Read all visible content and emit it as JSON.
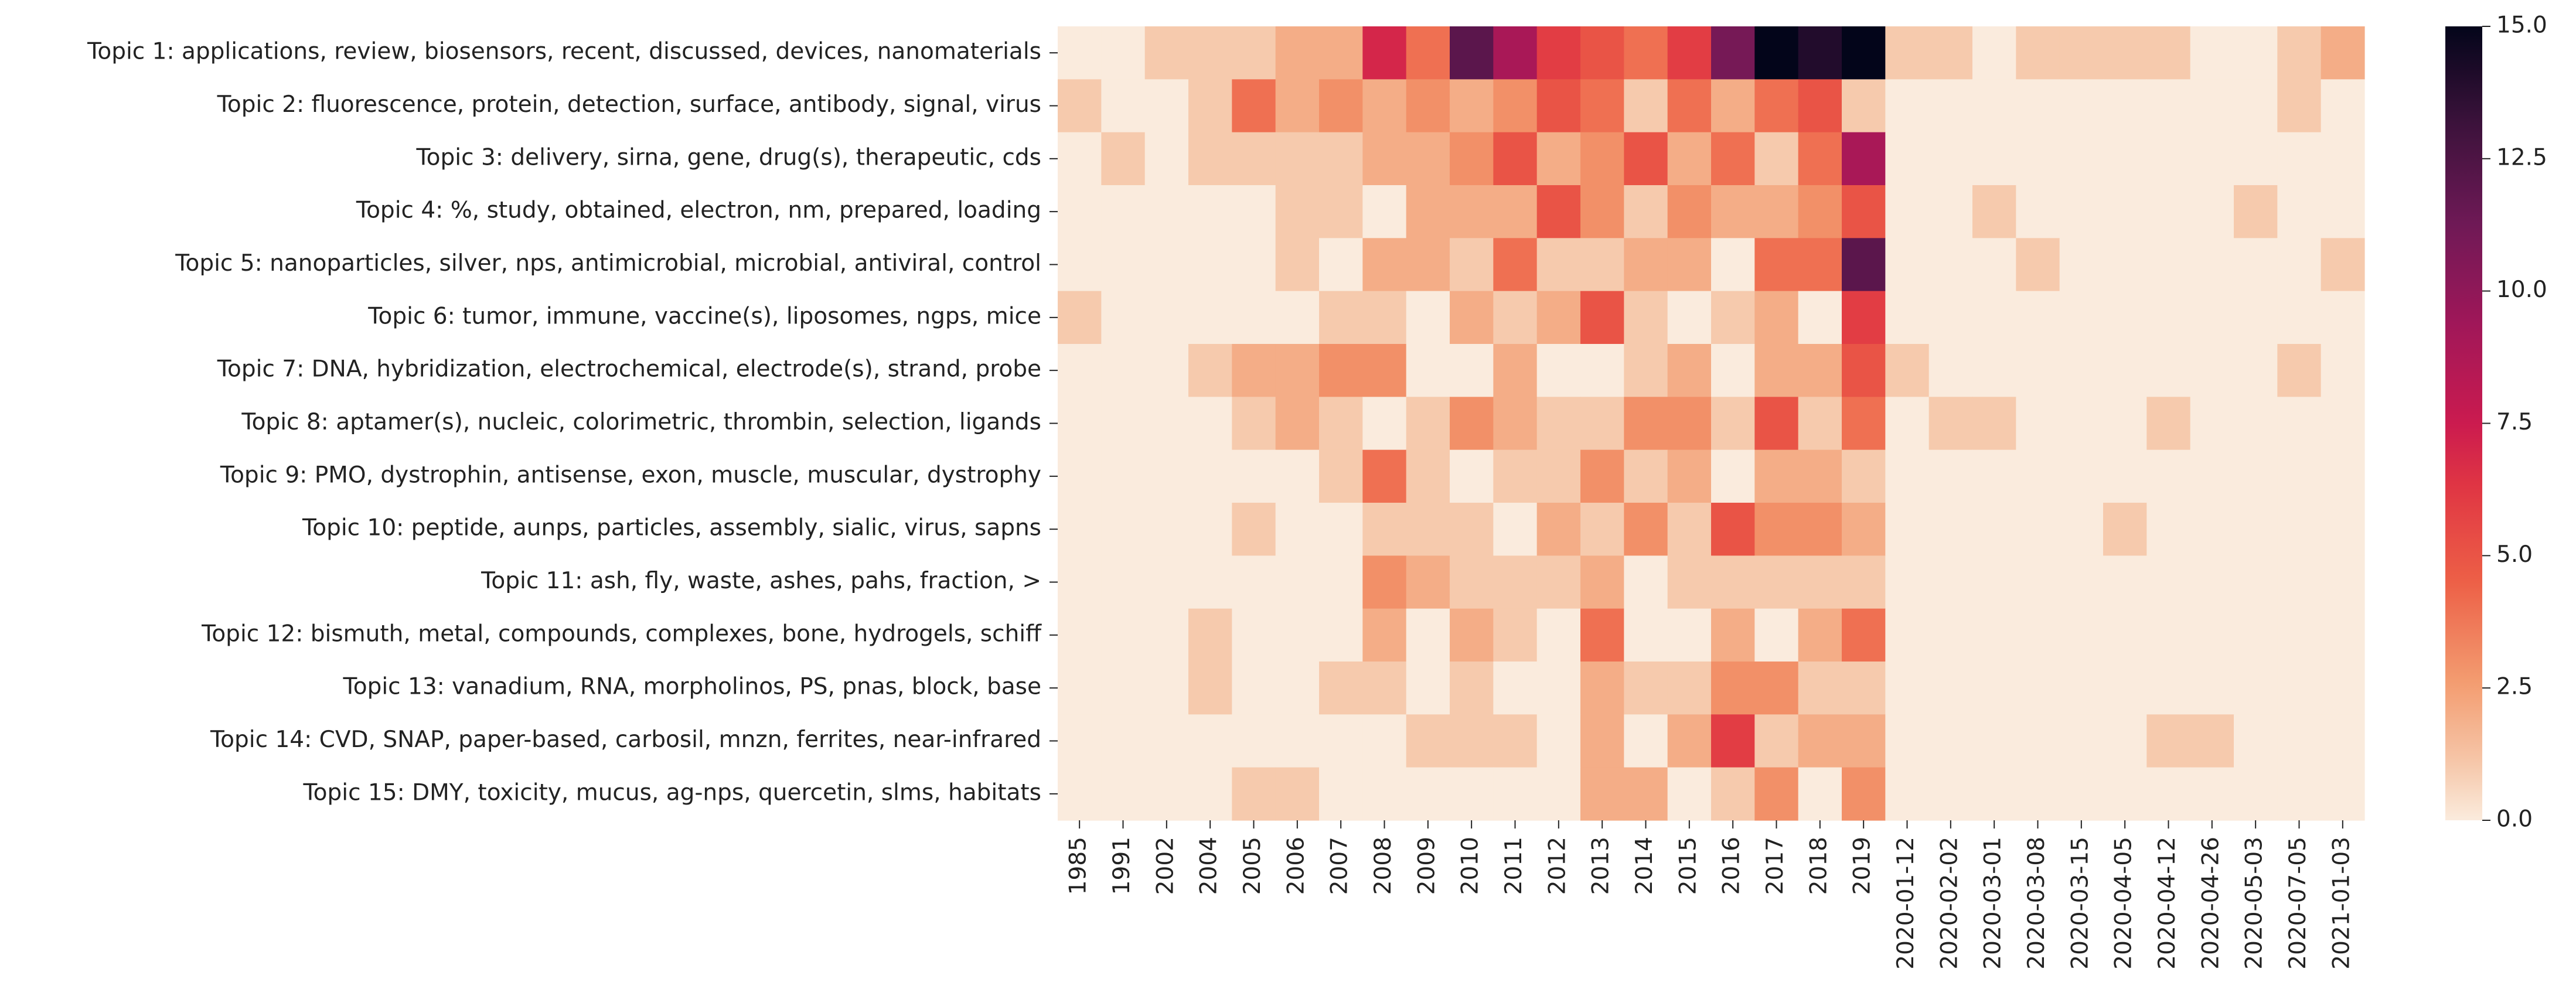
{
  "chart_data": {
    "type": "heatmap",
    "title": "",
    "xlabel": "",
    "ylabel": "",
    "rows": [
      "Topic 1: applications, review, biosensors, recent, discussed, devices, nanomaterials",
      "Topic 2: fluorescence, protein, detection, surface, antibody, signal, virus",
      "Topic 3: delivery, sirna, gene, drug(s), therapeutic, cds",
      "Topic 4: %, study, obtained, electron, nm, prepared, loading",
      "Topic 5: nanoparticles, silver, nps, antimicrobial, microbial, antiviral, control",
      "Topic 6: tumor, immune, vaccine(s), liposomes, ngps, mice",
      "Topic 7: DNA, hybridization, electrochemical, electrode(s), strand, probe",
      "Topic 8: aptamer(s), nucleic, colorimetric, thrombin, selection, ligands",
      "Topic 9: PMO, dystrophin, antisense, exon, muscle, muscular, dystrophy",
      "Topic 10: peptide, aunps, particles, assembly, sialic, virus, sapns",
      "Topic 11: ash, fly, waste, ashes, pahs, fraction, >",
      "Topic 12: bismuth, metal, compounds, complexes, bone, hydrogels, schiff",
      "Topic 13: vanadium, RNA, morpholinos, PS, pnas, block, base",
      "Topic 14: CVD, SNAP, paper-based, carbosil, mnzn, ferrites, near-infrared",
      "Topic 15: DMY, toxicity, mucus, ag-nps, quercetin, slms, habitats"
    ],
    "columns": [
      "1985",
      "1991",
      "2002",
      "2004",
      "2005",
      "2006",
      "2007",
      "2008",
      "2009",
      "2010",
      "2011",
      "2012",
      "2013",
      "2014",
      "2015",
      "2016",
      "2017",
      "2018",
      "2019",
      "2020-01-12",
      "2020-02-02",
      "2020-03-01",
      "2020-03-08",
      "2020-03-15",
      "2020-04-05",
      "2020-04-12",
      "2020-04-26",
      "2020-05-03",
      "2020-07-05",
      "2021-01-03"
    ],
    "values": [
      [
        0,
        0,
        1,
        1,
        1,
        2,
        2,
        7,
        4,
        12,
        9,
        6,
        5,
        4,
        6,
        11,
        15,
        14,
        15,
        1,
        1,
        0,
        1,
        1,
        1,
        1,
        0,
        0,
        1,
        2
      ],
      [
        1,
        0,
        0,
        1,
        4,
        2,
        3,
        2,
        3,
        2,
        3,
        5,
        4,
        1,
        4,
        2,
        4,
        5,
        1,
        0,
        0,
        0,
        0,
        0,
        0,
        0,
        0,
        0,
        1,
        0
      ],
      [
        0,
        1,
        0,
        1,
        1,
        1,
        1,
        2,
        2,
        3,
        5,
        2,
        3,
        5,
        2,
        4,
        1,
        4,
        9,
        0,
        0,
        0,
        0,
        0,
        0,
        0,
        0,
        0,
        0,
        0
      ],
      [
        0,
        0,
        0,
        0,
        0,
        1,
        1,
        0,
        2,
        2,
        2,
        5,
        3,
        1,
        3,
        2,
        2,
        3,
        5,
        0,
        0,
        1,
        0,
        0,
        0,
        0,
        0,
        1,
        0,
        0
      ],
      [
        0,
        0,
        0,
        0,
        0,
        1,
        0,
        2,
        2,
        1,
        4,
        1,
        1,
        2,
        2,
        0,
        4,
        4,
        12,
        0,
        0,
        0,
        1,
        0,
        0,
        0,
        0,
        0,
        0,
        1
      ],
      [
        1,
        0,
        0,
        0,
        0,
        0,
        1,
        1,
        0,
        2,
        1,
        2,
        5,
        1,
        0,
        1,
        2,
        0,
        6,
        0,
        0,
        0,
        0,
        0,
        0,
        0,
        0,
        0,
        0,
        0
      ],
      [
        0,
        0,
        0,
        1,
        2,
        2,
        3,
        3,
        0,
        0,
        2,
        0,
        0,
        1,
        2,
        0,
        2,
        2,
        5,
        1,
        0,
        0,
        0,
        0,
        0,
        0,
        0,
        0,
        1,
        0
      ],
      [
        0,
        0,
        0,
        0,
        1,
        2,
        1,
        0,
        1,
        3,
        2,
        1,
        1,
        3,
        3,
        1,
        5,
        1,
        4,
        0,
        1,
        1,
        0,
        0,
        0,
        1,
        0,
        0,
        0,
        0
      ],
      [
        0,
        0,
        0,
        0,
        0,
        0,
        1,
        4,
        1,
        0,
        1,
        1,
        3,
        1,
        2,
        0,
        2,
        2,
        1,
        0,
        0,
        0,
        0,
        0,
        0,
        0,
        0,
        0,
        0,
        0
      ],
      [
        0,
        0,
        0,
        0,
        1,
        0,
        0,
        1,
        1,
        1,
        0,
        2,
        1,
        3,
        1,
        5,
        3,
        3,
        2,
        0,
        0,
        0,
        0,
        0,
        1,
        0,
        0,
        0,
        0,
        0
      ],
      [
        0,
        0,
        0,
        0,
        0,
        0,
        0,
        3,
        2,
        1,
        1,
        1,
        2,
        0,
        1,
        1,
        1,
        1,
        1,
        0,
        0,
        0,
        0,
        0,
        0,
        0,
        0,
        0,
        0,
        0
      ],
      [
        0,
        0,
        0,
        1,
        0,
        0,
        0,
        2,
        0,
        2,
        1,
        0,
        4,
        0,
        0,
        2,
        0,
        2,
        4,
        0,
        0,
        0,
        0,
        0,
        0,
        0,
        0,
        0,
        0,
        0
      ],
      [
        0,
        0,
        0,
        1,
        0,
        0,
        1,
        1,
        0,
        1,
        0,
        0,
        2,
        1,
        1,
        3,
        3,
        1,
        1,
        0,
        0,
        0,
        0,
        0,
        0,
        0,
        0,
        0,
        0,
        0
      ],
      [
        0,
        0,
        0,
        0,
        0,
        0,
        0,
        0,
        1,
        1,
        1,
        0,
        2,
        0,
        2,
        6,
        1,
        2,
        2,
        0,
        0,
        0,
        0,
        0,
        0,
        1,
        1,
        0,
        0,
        0
      ],
      [
        0,
        0,
        0,
        0,
        1,
        1,
        0,
        0,
        0,
        0,
        0,
        0,
        2,
        2,
        0,
        1,
        3,
        0,
        3,
        0,
        0,
        0,
        0,
        0,
        0,
        0,
        0,
        0,
        0,
        0
      ]
    ],
    "zlim": [
      0,
      15
    ],
    "colormap": "rocket_r",
    "colorbar_ticks": [
      "0.0",
      "2.5",
      "5.0",
      "7.5",
      "10.0",
      "12.5",
      "15.0"
    ],
    "grid": false,
    "legend": "colorbar-right"
  }
}
